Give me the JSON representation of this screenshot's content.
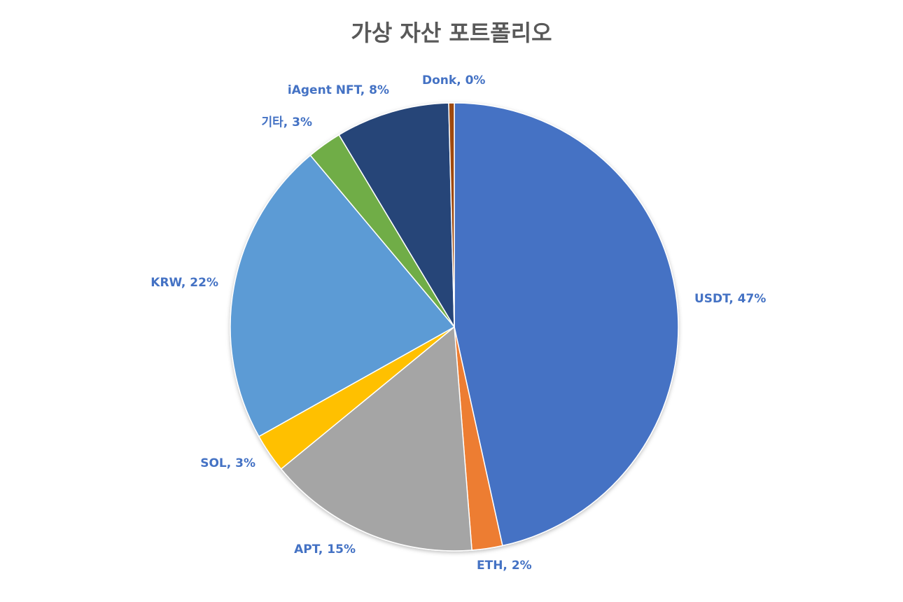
{
  "chart_data": {
    "type": "pie",
    "title": "가상 자산 포트폴리오",
    "slices": [
      {
        "name": "USDT",
        "value": 46.5,
        "label": "USDT, 47%",
        "color": "#4472c4"
      },
      {
        "name": "ETH",
        "value": 2.2,
        "label": "ETH, 2%",
        "color": "#ed7d31"
      },
      {
        "name": "APT",
        "value": 15.3,
        "label": "APT, 15%",
        "color": "#a5a5a5"
      },
      {
        "name": "SOL",
        "value": 2.8,
        "label": "SOL, 3%",
        "color": "#ffc000"
      },
      {
        "name": "KRW",
        "value": 22.0,
        "label": "KRW, 22%",
        "color": "#5b9bd5"
      },
      {
        "name": "기타",
        "value": 2.5,
        "label": "기타, 3%",
        "color": "#70ad47"
      },
      {
        "name": "iAgent NFT",
        "value": 8.2,
        "label": "iAgent NFT, 8%",
        "color": "#264478"
      },
      {
        "name": "Donk",
        "value": 0.4,
        "label": "Donk, 0%",
        "color": "#9e480e"
      }
    ],
    "legend": "none",
    "label_color": "#4472c4"
  }
}
